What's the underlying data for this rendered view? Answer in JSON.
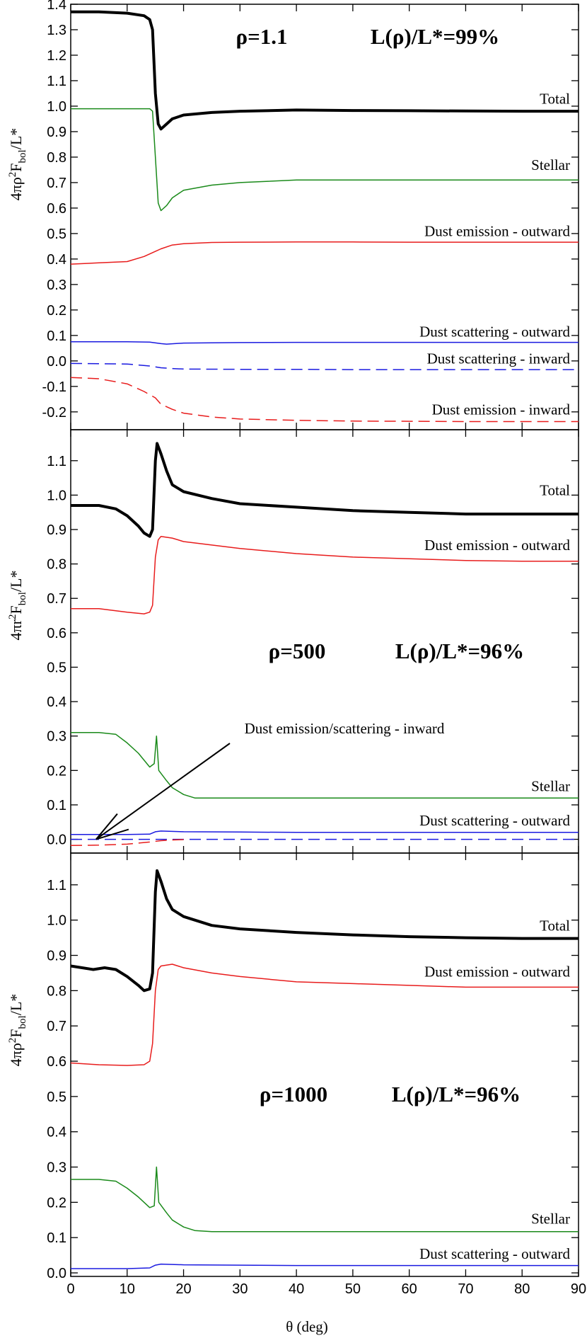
{
  "figure": {
    "xlabel": "θ (deg)",
    "xlim": [
      0,
      90
    ],
    "xticks": [
      0,
      10,
      20,
      30,
      40,
      50,
      60,
      70,
      80,
      90
    ]
  },
  "chart_data": [
    {
      "type": "line",
      "title": "",
      "annotation": {
        "rho": "ρ=1.1",
        "lum": "L(ρ)/L*=99%"
      },
      "ylabel": "4πρ²F_bol/L*",
      "ylabel_main": "4πρ",
      "ylabel_sup": "2",
      "ylabel_mid": "F",
      "ylabel_sub": "bol",
      "ylabel_end": "/L*",
      "ylim": [
        -0.27,
        1.4
      ],
      "yticks": [
        -0.2,
        -0.1,
        0.0,
        0.1,
        0.2,
        0.3,
        0.4,
        0.5,
        0.6,
        0.7,
        0.8,
        0.9,
        1.0,
        1.1,
        1.2,
        1.3,
        1.4
      ],
      "ytick_labels": [
        "-0.2",
        "-0.1",
        "0.0",
        "0.1",
        "0.2",
        "0.3",
        "0.4",
        "0.5",
        "0.6",
        "0.7",
        "0.8",
        "0.9",
        "1.0",
        "1.1",
        "1.2",
        "1.3",
        "1.4"
      ],
      "series": [
        {
          "name": "Total",
          "color": "#000000",
          "dash": "solid",
          "width": 4,
          "x": [
            0,
            5,
            10,
            13,
            14,
            14.5,
            15,
            15.5,
            16,
            17,
            18,
            20,
            25,
            30,
            40,
            50,
            60,
            70,
            80,
            90
          ],
          "y": [
            1.37,
            1.37,
            1.365,
            1.355,
            1.34,
            1.3,
            1.05,
            0.93,
            0.91,
            0.93,
            0.95,
            0.965,
            0.975,
            0.98,
            0.985,
            0.983,
            0.982,
            0.981,
            0.98,
            0.98
          ]
        },
        {
          "name": "Stellar",
          "color": "#1a8a1a",
          "dash": "solid",
          "width": 1.5,
          "x": [
            0,
            5,
            10,
            14,
            14.5,
            15,
            15.5,
            16,
            17,
            18,
            20,
            25,
            30,
            40,
            50,
            60,
            70,
            80,
            90
          ],
          "y": [
            0.99,
            0.99,
            0.99,
            0.99,
            0.98,
            0.8,
            0.62,
            0.59,
            0.61,
            0.64,
            0.67,
            0.69,
            0.7,
            0.71,
            0.71,
            0.71,
            0.71,
            0.71,
            0.71
          ]
        },
        {
          "name": "Dust emission - outward",
          "color": "#e81c1c",
          "dash": "solid",
          "width": 1.5,
          "x": [
            0,
            5,
            10,
            13,
            15,
            16,
            18,
            20,
            25,
            30,
            40,
            50,
            60,
            70,
            80,
            90
          ],
          "y": [
            0.38,
            0.385,
            0.39,
            0.41,
            0.43,
            0.44,
            0.455,
            0.46,
            0.465,
            0.466,
            0.467,
            0.467,
            0.466,
            0.466,
            0.466,
            0.466
          ]
        },
        {
          "name": "Dust scattering - outward",
          "color": "#1a1ae0",
          "dash": "solid",
          "width": 1.5,
          "x": [
            0,
            10,
            14,
            16,
            17,
            20,
            30,
            40,
            50,
            60,
            70,
            80,
            90
          ],
          "y": [
            0.075,
            0.075,
            0.074,
            0.068,
            0.066,
            0.07,
            0.072,
            0.073,
            0.073,
            0.073,
            0.073,
            0.073,
            0.073
          ]
        },
        {
          "name": "Dust scattering - inward",
          "color": "#1a1ae0",
          "dash": "dashed",
          "width": 1.5,
          "x": [
            0,
            10,
            14,
            16,
            18,
            20,
            30,
            40,
            50,
            60,
            70,
            80,
            90
          ],
          "y": [
            -0.01,
            -0.012,
            -0.02,
            -0.027,
            -0.03,
            -0.032,
            -0.033,
            -0.033,
            -0.034,
            -0.034,
            -0.034,
            -0.034,
            -0.034
          ]
        },
        {
          "name": "Dust emission - inward",
          "color": "#e81c1c",
          "dash": "dashed",
          "width": 1.5,
          "x": [
            0,
            5,
            10,
            13,
            15,
            16,
            18,
            20,
            25,
            30,
            40,
            50,
            60,
            70,
            80,
            90
          ],
          "y": [
            -0.065,
            -0.07,
            -0.09,
            -0.12,
            -0.145,
            -0.17,
            -0.19,
            -0.205,
            -0.22,
            -0.228,
            -0.233,
            -0.236,
            -0.237,
            -0.238,
            -0.238,
            -0.238
          ]
        }
      ],
      "labels": [
        {
          "text": "Total",
          "y": 1.01
        },
        {
          "text": "Stellar",
          "y": 0.75
        },
        {
          "text": "Dust emission - outward",
          "y": 0.49
        },
        {
          "text": "Dust scattering - outward",
          "y": 0.095
        },
        {
          "text": "Dust scattering - inward",
          "y": -0.01
        },
        {
          "text": "Dust emission - inward",
          "y": -0.21
        }
      ]
    },
    {
      "type": "line",
      "title": "",
      "annotation": {
        "rho": "ρ=500",
        "lum": "L(ρ)/L*=96%"
      },
      "ylabel": "4πr²F_bol/L*",
      "ylabel_main": "4πr",
      "ylabel_sup": "2",
      "ylabel_mid": "F",
      "ylabel_sub": "bol",
      "ylabel_end": "/L*",
      "ylim": [
        -0.04,
        1.19
      ],
      "yticks": [
        0.0,
        0.1,
        0.2,
        0.3,
        0.4,
        0.5,
        0.6,
        0.7,
        0.8,
        0.9,
        1.0,
        1.1
      ],
      "ytick_labels": [
        "0.0",
        "0.1",
        "0.2",
        "0.3",
        "0.4",
        "0.5",
        "0.6",
        "0.7",
        "0.8",
        "0.9",
        "1.0",
        "1.1"
      ],
      "series": [
        {
          "name": "Total",
          "color": "#000000",
          "dash": "solid",
          "width": 4,
          "x": [
            0,
            5,
            8,
            10,
            12,
            13,
            14,
            14.5,
            15,
            15.3,
            16,
            17,
            18,
            20,
            25,
            30,
            40,
            50,
            60,
            70,
            80,
            90
          ],
          "y": [
            0.97,
            0.97,
            0.96,
            0.94,
            0.91,
            0.89,
            0.88,
            0.9,
            1.1,
            1.15,
            1.12,
            1.07,
            1.03,
            1.01,
            0.99,
            0.975,
            0.965,
            0.955,
            0.95,
            0.945,
            0.945,
            0.945
          ]
        },
        {
          "name": "Dust emission - outward",
          "color": "#e81c1c",
          "dash": "solid",
          "width": 1.5,
          "x": [
            0,
            5,
            10,
            13,
            14,
            14.5,
            15,
            15.5,
            16,
            18,
            20,
            25,
            30,
            40,
            50,
            60,
            70,
            80,
            90
          ],
          "y": [
            0.67,
            0.67,
            0.66,
            0.655,
            0.66,
            0.68,
            0.82,
            0.87,
            0.88,
            0.875,
            0.865,
            0.855,
            0.845,
            0.83,
            0.82,
            0.815,
            0.81,
            0.808,
            0.808
          ]
        },
        {
          "name": "Stellar",
          "color": "#1a8a1a",
          "dash": "solid",
          "width": 1.5,
          "x": [
            0,
            5,
            8,
            10,
            12,
            14,
            14.8,
            15.2,
            15.6,
            17,
            18,
            20,
            22,
            25,
            30,
            40,
            50,
            60,
            70,
            80,
            90
          ],
          "y": [
            0.31,
            0.31,
            0.305,
            0.28,
            0.25,
            0.21,
            0.22,
            0.3,
            0.2,
            0.17,
            0.15,
            0.13,
            0.12,
            0.12,
            0.12,
            0.12,
            0.12,
            0.12,
            0.12,
            0.12,
            0.12
          ]
        },
        {
          "name": "Dust scattering - outward",
          "color": "#1a1ae0",
          "dash": "solid",
          "width": 1.5,
          "x": [
            0,
            10,
            14,
            15,
            16,
            20,
            30,
            40,
            50,
            60,
            70,
            80,
            90
          ],
          "y": [
            0.014,
            0.014,
            0.015,
            0.022,
            0.024,
            0.022,
            0.021,
            0.02,
            0.02,
            0.02,
            0.02,
            0.02,
            0.02
          ]
        },
        {
          "name": "Dust scattering - inward",
          "color": "#1a1ae0",
          "dash": "dashed",
          "width": 1.5,
          "x": [
            0,
            10,
            20,
            30,
            40,
            50,
            60,
            70,
            80,
            90
          ],
          "y": [
            0.0,
            0.0,
            0.0,
            0.0,
            0.0,
            0.0,
            0.0,
            0.0,
            0.0,
            0.0
          ]
        },
        {
          "name": "Dust emission - inward",
          "color": "#e81c1c",
          "dash": "dashed",
          "width": 1.5,
          "x": [
            0,
            5,
            10,
            14,
            16,
            18,
            20
          ],
          "y": [
            -0.018,
            -0.017,
            -0.014,
            -0.008,
            -0.004,
            -0.002,
            -0.001
          ]
        }
      ],
      "labels": [
        {
          "text": "Total",
          "y": 1.0
        },
        {
          "text": "Dust emission - outward",
          "y": 0.84
        },
        {
          "text": "Stellar",
          "y": 0.14
        },
        {
          "text": "Dust scattering - outward",
          "y": 0.04
        }
      ],
      "arrow_label": "Dust emission/scattering - inward"
    },
    {
      "type": "line",
      "title": "",
      "annotation": {
        "rho": "ρ=1000",
        "lum": "L(ρ)/L*=96%"
      },
      "ylabel": "4πρ²F_bol/L*",
      "ylabel_main": "4πρ",
      "ylabel_sup": "2",
      "ylabel_mid": "F",
      "ylabel_sub": "bol",
      "ylabel_end": "/L*",
      "ylim": [
        -0.01,
        1.19
      ],
      "yticks": [
        0.0,
        0.1,
        0.2,
        0.3,
        0.4,
        0.5,
        0.6,
        0.7,
        0.8,
        0.9,
        1.0,
        1.1
      ],
      "ytick_labels": [
        "0.0",
        "0.1",
        "0.2",
        "0.3",
        "0.4",
        "0.5",
        "0.6",
        "0.7",
        "0.8",
        "0.9",
        "1.0",
        "1.1"
      ],
      "series": [
        {
          "name": "Total",
          "color": "#000000",
          "dash": "solid",
          "width": 4,
          "x": [
            0,
            2,
            4,
            6,
            8,
            10,
            12,
            13,
            14,
            14.5,
            15,
            15.3,
            16,
            17,
            18,
            20,
            25,
            30,
            40,
            50,
            60,
            70,
            80,
            90
          ],
          "y": [
            0.87,
            0.865,
            0.86,
            0.865,
            0.86,
            0.84,
            0.815,
            0.8,
            0.805,
            0.85,
            1.08,
            1.14,
            1.11,
            1.06,
            1.03,
            1.01,
            0.985,
            0.975,
            0.965,
            0.958,
            0.953,
            0.95,
            0.948,
            0.948
          ]
        },
        {
          "name": "Dust emission - outward",
          "color": "#e81c1c",
          "dash": "solid",
          "width": 1.5,
          "x": [
            0,
            5,
            10,
            13,
            14,
            14.5,
            15,
            15.5,
            16,
            18,
            20,
            25,
            30,
            40,
            50,
            60,
            70,
            80,
            90
          ],
          "y": [
            0.595,
            0.59,
            0.588,
            0.59,
            0.6,
            0.65,
            0.8,
            0.86,
            0.87,
            0.875,
            0.865,
            0.85,
            0.84,
            0.825,
            0.82,
            0.815,
            0.81,
            0.81,
            0.81
          ]
        },
        {
          "name": "Stellar",
          "color": "#1a8a1a",
          "dash": "solid",
          "width": 1.5,
          "x": [
            0,
            5,
            8,
            10,
            12,
            14,
            14.8,
            15.2,
            15.6,
            17,
            18,
            20,
            22,
            25,
            30,
            40,
            50,
            60,
            70,
            80,
            90
          ],
          "y": [
            0.265,
            0.265,
            0.26,
            0.24,
            0.215,
            0.185,
            0.19,
            0.3,
            0.2,
            0.17,
            0.15,
            0.13,
            0.12,
            0.117,
            0.117,
            0.117,
            0.117,
            0.117,
            0.117,
            0.117,
            0.117
          ]
        },
        {
          "name": "Dust scattering - outward",
          "color": "#1a1ae0",
          "dash": "solid",
          "width": 1.5,
          "x": [
            0,
            10,
            14,
            15,
            16,
            20,
            30,
            40,
            50,
            60,
            70,
            80,
            90
          ],
          "y": [
            0.012,
            0.012,
            0.014,
            0.022,
            0.025,
            0.023,
            0.022,
            0.021,
            0.021,
            0.021,
            0.021,
            0.021,
            0.021
          ]
        }
      ],
      "labels": [
        {
          "text": "Total",
          "y": 0.97
        },
        {
          "text": "Dust emission - outward",
          "y": 0.84
        },
        {
          "text": "Stellar",
          "y": 0.14
        },
        {
          "text": "Dust scattering - outward",
          "y": 0.04
        }
      ]
    }
  ]
}
